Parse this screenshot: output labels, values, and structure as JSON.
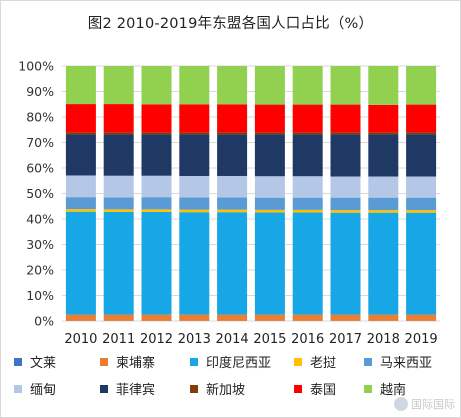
{
  "chart_data": {
    "type": "bar",
    "stacked": true,
    "percent": true,
    "title": "图2 2010-2019年东盟各国人口占比（%）",
    "categories": [
      "2010",
      "2011",
      "2012",
      "2013",
      "2014",
      "2015",
      "2016",
      "2017",
      "2018",
      "2019"
    ],
    "yticks": [
      "0%",
      "10%",
      "20%",
      "30%",
      "40%",
      "50%",
      "60%",
      "70%",
      "80%",
      "90%",
      "100%"
    ],
    "ylim": [
      0,
      100
    ],
    "grid": true,
    "legend_position": "bottom",
    "series": [
      {
        "name": "文莱",
        "color": "#4472c4",
        "values": [
          0.07,
          0.07,
          0.07,
          0.07,
          0.07,
          0.07,
          0.07,
          0.07,
          0.07,
          0.07
        ]
      },
      {
        "name": "柬埔寨",
        "color": "#ed7d31",
        "values": [
          2.4,
          2.4,
          2.4,
          2.4,
          2.4,
          2.4,
          2.4,
          2.4,
          2.4,
          2.4
        ]
      },
      {
        "name": "印度尼西亚",
        "color": "#17a6e6",
        "values": [
          40.4,
          40.3,
          40.3,
          40.2,
          40.2,
          40.1,
          40.1,
          40.0,
          40.0,
          40.0
        ]
      },
      {
        "name": "老挝",
        "color": "#ffc000",
        "values": [
          1.0,
          1.0,
          1.0,
          1.0,
          1.0,
          1.0,
          1.0,
          1.0,
          1.0,
          1.0
        ]
      },
      {
        "name": "马来西亚",
        "color": "#5b9bd5",
        "values": [
          4.7,
          4.7,
          4.8,
          4.8,
          4.8,
          4.8,
          4.8,
          4.9,
          4.9,
          4.9
        ]
      },
      {
        "name": "缅甸",
        "color": "#b4c7e7",
        "values": [
          8.5,
          8.5,
          8.4,
          8.4,
          8.4,
          8.4,
          8.4,
          8.3,
          8.3,
          8.3
        ]
      },
      {
        "name": "菲律宾",
        "color": "#203864",
        "values": [
          16.1,
          16.2,
          16.2,
          16.3,
          16.3,
          16.4,
          16.4,
          16.5,
          16.5,
          16.6
        ]
      },
      {
        "name": "新加坡",
        "color": "#843c0c",
        "values": [
          0.8,
          0.8,
          0.8,
          0.8,
          0.8,
          0.8,
          0.8,
          0.8,
          0.8,
          0.8
        ]
      },
      {
        "name": "泰国",
        "color": "#ff0000",
        "values": [
          11.1,
          11.1,
          11.0,
          11.0,
          11.0,
          10.9,
          10.9,
          10.9,
          10.8,
          10.8
        ]
      },
      {
        "name": "越南",
        "color": "#92d050",
        "values": [
          14.93,
          14.93,
          15.03,
          15.03,
          15.03,
          15.13,
          15.13,
          15.13,
          15.23,
          15.13
        ]
      }
    ]
  },
  "watermark": {
    "text": "国际国际"
  }
}
